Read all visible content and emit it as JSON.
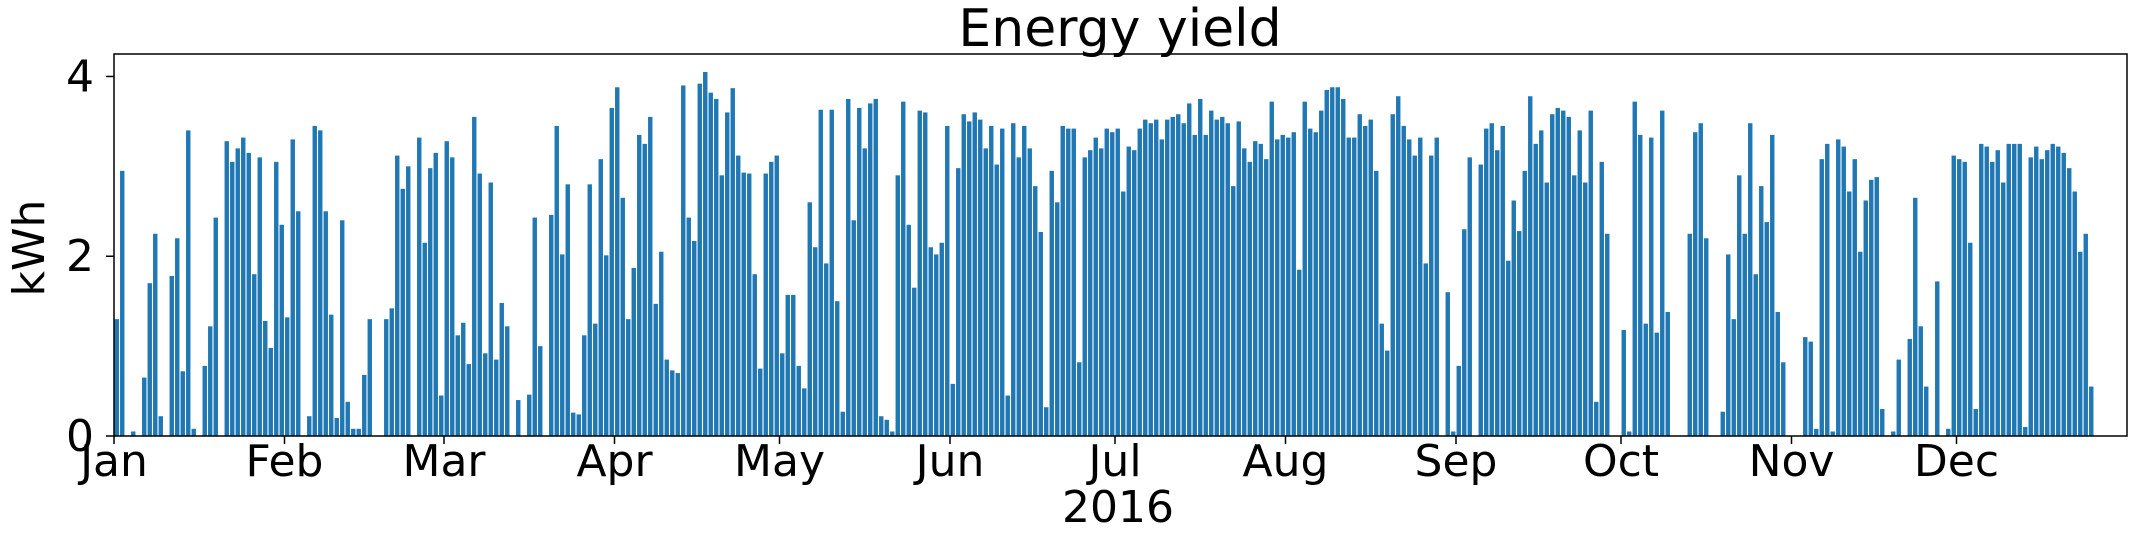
{
  "chart_data": {
    "type": "bar",
    "title": "Energy yield",
    "xlabel": "2016",
    "ylabel": "kWh",
    "ylim": [
      0,
      4.25
    ],
    "yticks": [
      0,
      2,
      4
    ],
    "ytick_labels": [
      "0",
      "2",
      "4"
    ],
    "xticks": [
      {
        "label": "Jan",
        "day": 0
      },
      {
        "label": "Feb",
        "day": 31
      },
      {
        "label": "Mar",
        "day": 60
      },
      {
        "label": "Apr",
        "day": 91
      },
      {
        "label": "May",
        "day": 121
      },
      {
        "label": "Jun",
        "day": 152
      },
      {
        "label": "Jul",
        "day": 182
      },
      {
        "label": "Aug",
        "day": 213
      },
      {
        "label": "Sep",
        "day": 244
      },
      {
        "label": "Oct",
        "day": 274
      },
      {
        "label": "Nov",
        "day": 305
      },
      {
        "label": "Dec",
        "day": 335
      }
    ],
    "days_in_year": 366,
    "series": [
      {
        "name": "Energy yield",
        "unit": "kWh",
        "values": [
          1.3,
          2.95,
          0.0,
          0.05,
          0.0,
          0.65,
          1.7,
          2.25,
          0.22,
          0.0,
          1.78,
          2.2,
          0.72,
          3.4,
          0.08,
          0.0,
          0.78,
          1.22,
          2.43,
          0.0,
          3.28,
          3.05,
          3.2,
          3.32,
          3.15,
          1.8,
          3.1,
          1.28,
          0.98,
          3.05,
          2.35,
          1.32,
          3.3,
          2.5,
          0.0,
          0.22,
          3.45,
          3.4,
          2.5,
          1.35,
          0.2,
          2.4,
          0.38,
          0.08,
          0.08,
          0.68,
          1.3,
          0.0,
          0.0,
          1.3,
          1.42,
          3.12,
          2.75,
          3.0,
          0.0,
          3.32,
          2.15,
          2.98,
          3.15,
          0.45,
          3.28,
          3.1,
          1.12,
          1.26,
          0.8,
          3.55,
          2.92,
          0.92,
          2.82,
          0.85,
          1.48,
          1.22,
          0.0,
          0.4,
          0.0,
          0.46,
          2.43,
          1.0,
          0.0,
          2.46,
          3.45,
          2.02,
          2.8,
          0.26,
          0.24,
          1.12,
          2.8,
          1.25,
          3.08,
          2.01,
          3.65,
          3.88,
          2.65,
          1.3,
          1.87,
          3.35,
          3.25,
          3.55,
          1.47,
          2.05,
          0.85,
          0.73,
          0.7,
          3.9,
          2.43,
          2.17,
          3.92,
          4.05,
          3.82,
          3.75,
          2.9,
          3.6,
          3.87,
          3.12,
          2.93,
          2.92,
          1.8,
          0.75,
          2.92,
          3.05,
          3.12,
          0.92,
          1.57,
          1.57,
          0.78,
          0.53,
          2.6,
          2.1,
          3.63,
          1.92,
          3.63,
          1.5,
          0.27,
          3.75,
          2.4,
          3.65,
          3.2,
          3.7,
          3.75,
          0.22,
          0.18,
          0.05,
          2.9,
          3.72,
          2.35,
          1.65,
          3.62,
          3.6,
          2.1,
          2.02,
          2.15,
          3.45,
          0.58,
          2.98,
          3.58,
          3.5,
          3.6,
          3.52,
          3.2,
          3.45,
          3.02,
          3.42,
          0.45,
          3.48,
          3.1,
          3.45,
          3.2,
          2.78,
          2.27,
          0.32,
          2.95,
          2.6,
          3.45,
          3.42,
          3.42,
          0.82,
          3.1,
          3.18,
          3.32,
          3.2,
          3.42,
          3.38,
          3.42,
          2.72,
          3.22,
          3.18,
          3.42,
          3.52,
          3.48,
          3.52,
          3.3,
          3.52,
          3.55,
          3.58,
          3.48,
          3.7,
          3.35,
          3.75,
          3.35,
          3.62,
          3.52,
          3.55,
          3.48,
          2.78,
          3.5,
          3.2,
          3.05,
          3.28,
          3.25,
          3.08,
          3.72,
          3.3,
          3.35,
          3.32,
          3.38,
          1.85,
          3.72,
          3.42,
          3.38,
          3.62,
          3.85,
          3.88,
          3.88,
          3.75,
          3.32,
          3.32,
          3.58,
          3.45,
          3.52,
          2.95,
          1.25,
          0.95,
          3.58,
          3.78,
          3.45,
          3.3,
          3.12,
          3.32,
          1.92,
          3.12,
          3.32,
          0.0,
          1.6,
          0.05,
          0.78,
          2.3,
          3.1,
          0.0,
          3.02,
          3.42,
          3.48,
          3.18,
          3.45,
          1.95,
          2.62,
          2.28,
          2.95,
          3.78,
          3.25,
          3.4,
          2.82,
          3.58,
          3.65,
          3.62,
          3.55,
          2.9,
          3.4,
          2.82,
          3.62,
          0.38,
          3.05,
          2.25,
          0.0,
          0.0,
          1.18,
          0.05,
          3.72,
          3.35,
          1.25,
          3.32,
          1.15,
          3.62,
          1.38,
          0.0,
          0.0,
          0.0,
          2.25,
          3.38,
          3.48,
          2.2,
          0.0,
          0.0,
          0.27,
          2.02,
          1.3,
          2.9,
          2.25,
          3.48,
          1.8,
          2.78,
          2.38,
          3.35,
          1.38,
          0.82,
          0.0,
          0.0,
          0.0,
          1.1,
          1.05,
          0.08,
          3.08,
          3.25,
          0.05,
          3.3,
          3.22,
          2.72,
          3.08,
          2.05,
          2.62,
          2.85,
          2.88,
          0.3,
          0.0,
          0.05,
          0.85,
          0.0,
          1.08,
          2.65,
          1.22,
          0.55,
          0.0,
          1.72,
          0.0,
          0.08,
          3.12,
          3.08,
          3.05,
          2.15,
          0.3,
          3.25,
          3.22,
          3.05,
          3.18,
          2.82,
          3.25,
          3.25,
          3.25,
          0.1,
          3.1,
          3.22,
          3.08,
          3.18,
          3.25,
          3.22,
          3.15,
          2.98,
          2.72,
          2.05,
          2.25,
          0.55
        ]
      }
    ]
  }
}
